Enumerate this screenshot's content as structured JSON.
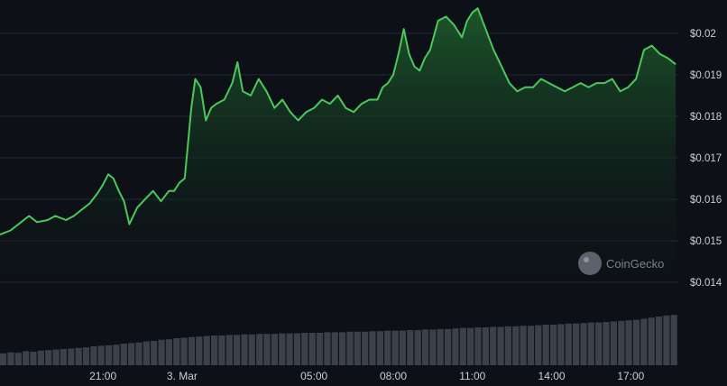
{
  "chart_data": {
    "type": "line",
    "title": "",
    "xlabel": "",
    "ylabel": "",
    "ylim": [
      0.014,
      0.0208
    ],
    "y_ticks": [
      "$0.014",
      "$0.015",
      "$0.016",
      "$0.017",
      "$0.018",
      "$0.019",
      "$0.02"
    ],
    "y_tick_values": [
      0.014,
      0.015,
      0.016,
      0.017,
      0.018,
      0.019,
      0.02
    ],
    "x_ticks": [
      "21:00",
      "3. Mar",
      "05:00",
      "08:00",
      "11:00",
      "14:00",
      "17:00"
    ],
    "x_tick_hours": [
      21,
      24,
      29,
      32,
      35,
      38,
      41
    ],
    "x_range_hours": [
      17.1,
      42.8
    ],
    "grid": true,
    "legend": "none",
    "colors": {
      "line": "#4ac95a",
      "area_top": "#1c5a2b",
      "volume": "#3a414b",
      "grid": "#222a33",
      "background": "#0d1117"
    },
    "series": [
      {
        "x": [
          17.1,
          17.5,
          17.9,
          18.2,
          18.5,
          18.9,
          19.2,
          19.6,
          19.9,
          20.2,
          20.5,
          20.8,
          21.0,
          21.2,
          21.4,
          21.6,
          21.8,
          22.0,
          22.3,
          22.6,
          22.9,
          23.2,
          23.5,
          23.7,
          23.9,
          24.1,
          24.2,
          24.35,
          24.5,
          24.7,
          24.9,
          25.1,
          25.3,
          25.6,
          25.9,
          26.1,
          26.3,
          26.6,
          26.9,
          27.2,
          27.5,
          27.8,
          28.1,
          28.4,
          28.7,
          29.0,
          29.3,
          29.6,
          29.9,
          30.2,
          30.5,
          30.8,
          31.1,
          31.4,
          31.6,
          31.8,
          32.0,
          32.2,
          32.4,
          32.6,
          32.8,
          33.0,
          33.2,
          33.4,
          33.7,
          34.0,
          34.3,
          34.6,
          34.8,
          35.0,
          35.2,
          35.5,
          35.8,
          36.1,
          36.4,
          36.7,
          37.0,
          37.3,
          37.6,
          37.9,
          38.2,
          38.5,
          38.8,
          39.1,
          39.4,
          39.7,
          40.0,
          40.3,
          40.6,
          40.9,
          41.2,
          41.5,
          41.8,
          42.1,
          42.4,
          42.7
        ],
        "values": [
          0.01515,
          0.01525,
          0.01545,
          0.0156,
          0.01545,
          0.0155,
          0.0156,
          0.0155,
          0.0156,
          0.01575,
          0.0159,
          0.01615,
          0.01635,
          0.0166,
          0.0165,
          0.0162,
          0.01595,
          0.0154,
          0.0158,
          0.016,
          0.0162,
          0.01595,
          0.0162,
          0.0162,
          0.0164,
          0.0165,
          0.0172,
          0.0182,
          0.0189,
          0.0187,
          0.0179,
          0.0182,
          0.0183,
          0.0184,
          0.0188,
          0.0193,
          0.0186,
          0.0185,
          0.0189,
          0.0186,
          0.0182,
          0.0184,
          0.0181,
          0.0179,
          0.0181,
          0.0182,
          0.0184,
          0.0183,
          0.0185,
          0.0182,
          0.0181,
          0.0183,
          0.0184,
          0.0184,
          0.0187,
          0.0188,
          0.019,
          0.0195,
          0.0201,
          0.0195,
          0.0192,
          0.0191,
          0.0194,
          0.0196,
          0.0203,
          0.0204,
          0.0202,
          0.0199,
          0.0203,
          0.0205,
          0.0206,
          0.0201,
          0.0196,
          0.0192,
          0.0188,
          0.0186,
          0.0187,
          0.0187,
          0.0189,
          0.0188,
          0.0187,
          0.0186,
          0.0187,
          0.0188,
          0.0187,
          0.0188,
          0.0188,
          0.0189,
          0.0186,
          0.0187,
          0.0189,
          0.0196,
          0.0197,
          0.0195,
          0.0194,
          0.01925
        ]
      }
    ],
    "volume_relative": [
      0.22,
      0.24,
      0.23,
      0.26,
      0.25,
      0.27,
      0.28,
      0.29,
      0.3,
      0.31,
      0.32,
      0.33,
      0.35,
      0.36,
      0.37,
      0.38,
      0.4,
      0.41,
      0.42,
      0.44,
      0.45,
      0.47,
      0.48,
      0.5,
      0.51,
      0.52,
      0.53,
      0.54,
      0.55,
      0.55,
      0.56,
      0.56,
      0.57,
      0.57,
      0.58,
      0.58,
      0.58,
      0.59,
      0.59,
      0.59,
      0.6,
      0.6,
      0.6,
      0.61,
      0.61,
      0.61,
      0.62,
      0.62,
      0.62,
      0.63,
      0.63,
      0.64,
      0.64,
      0.64,
      0.65,
      0.65,
      0.66,
      0.66,
      0.67,
      0.67,
      0.68,
      0.69,
      0.69,
      0.7,
      0.7,
      0.71,
      0.71,
      0.72,
      0.72,
      0.73,
      0.73,
      0.74,
      0.75,
      0.75,
      0.76,
      0.77,
      0.77,
      0.78,
      0.79,
      0.79,
      0.8,
      0.81,
      0.82,
      0.83,
      0.84,
      0.86,
      0.88,
      0.9,
      0.92,
      0.93
    ]
  },
  "watermark": {
    "text": "CoinGecko",
    "icon": "gecko-logo-icon"
  }
}
